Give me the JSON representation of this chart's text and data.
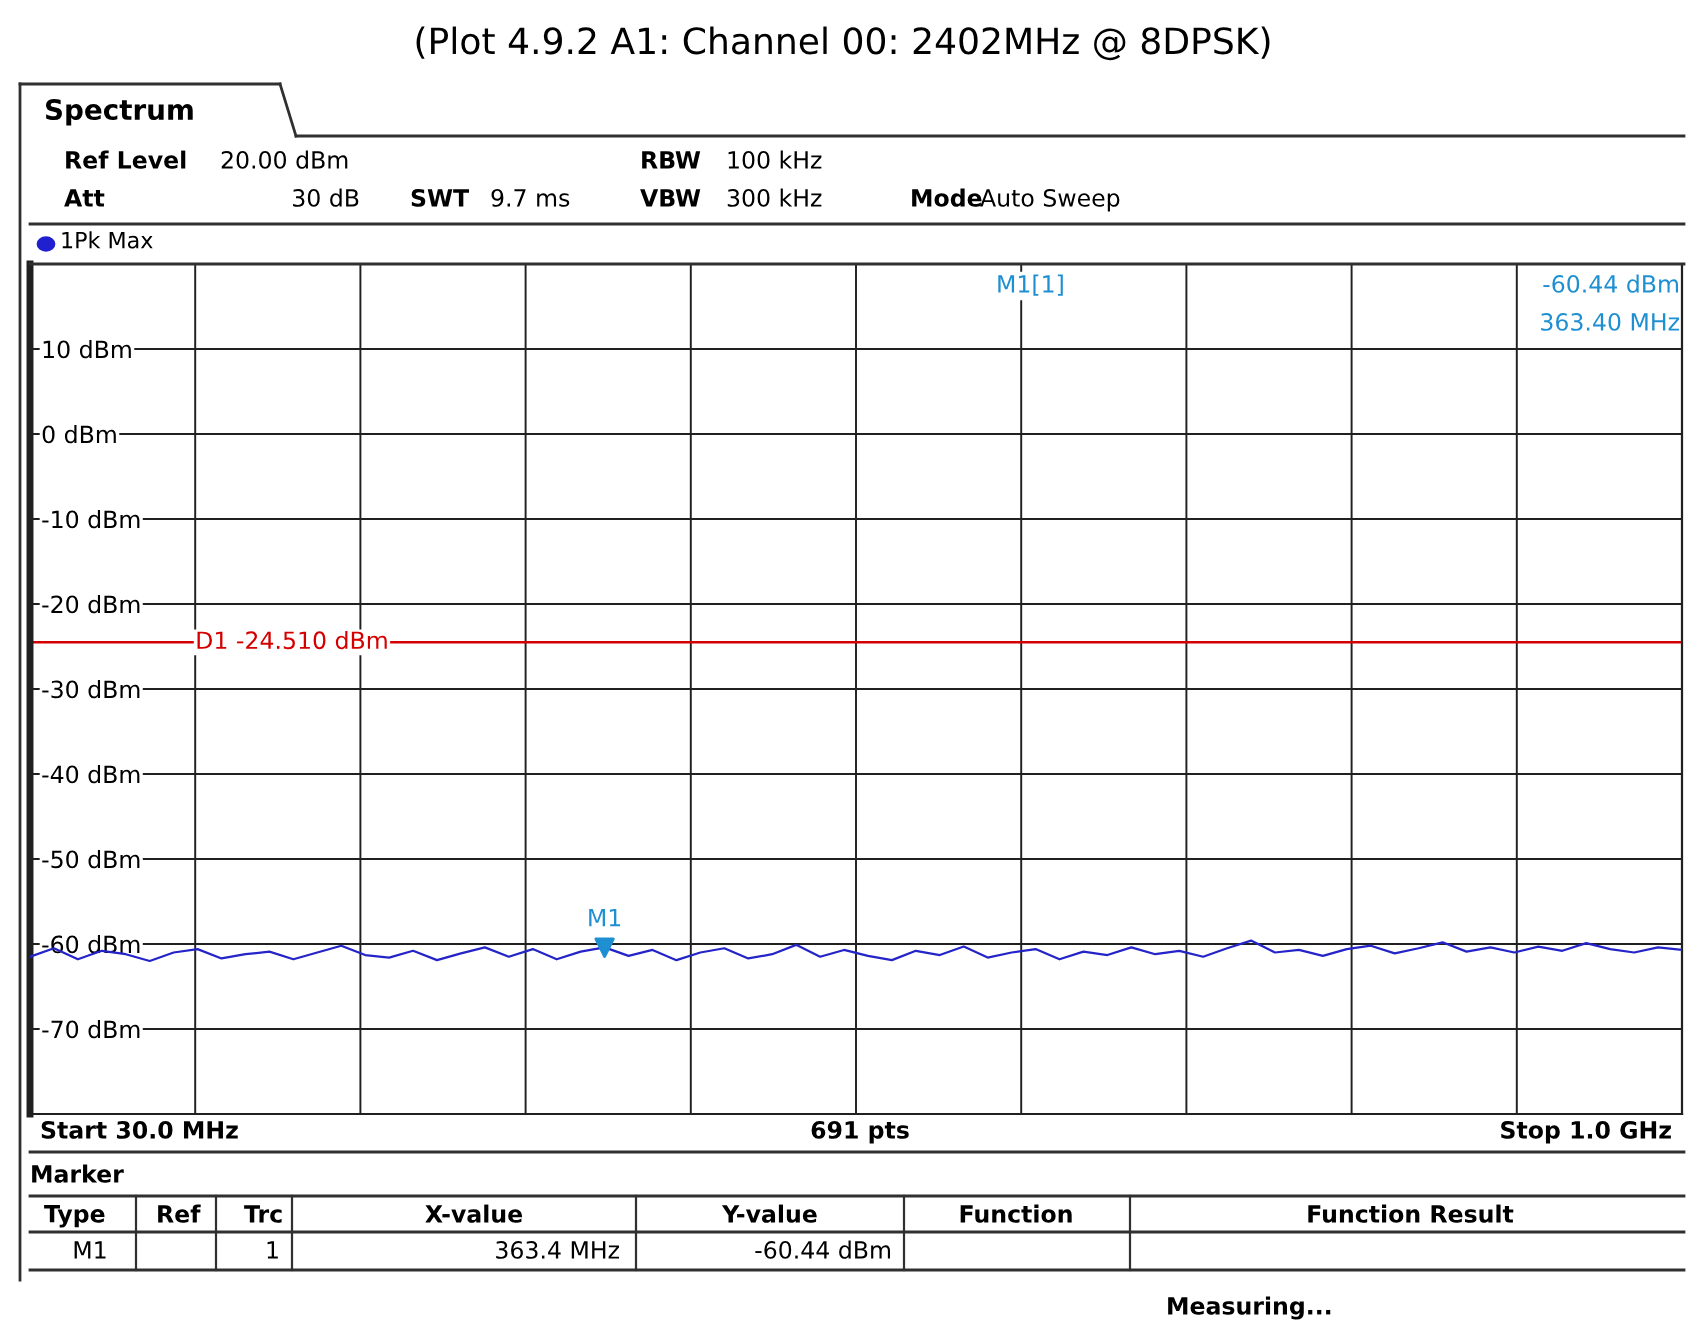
{
  "chart_data": {
    "type": "line",
    "title": "(Plot 4.9.2 A1: Channel 00: 2402MHz @ 8DPSK)",
    "series": [
      {
        "color": "#2424c8",
        "values": [
          -61.5,
          -60.5,
          -61.8,
          -60.8,
          -61.2,
          -62.0,
          -61.0,
          -60.6,
          -61.7,
          -61.2,
          -60.9,
          -61.8,
          -61.0,
          -60.2,
          -61.3,
          -61.6,
          -60.8,
          -61.9,
          -61.1,
          -60.4,
          -61.5,
          -60.6,
          -61.8,
          -60.9,
          -60.4,
          -61.4,
          -60.7,
          -61.9,
          -61.0,
          -60.5,
          -61.7,
          -61.2,
          -60.1,
          -61.5,
          -60.7,
          -61.4,
          -61.9,
          -60.8,
          -61.3,
          -60.3,
          -61.6,
          -61.0,
          -60.6,
          -61.8,
          -60.9,
          -61.3,
          -60.4,
          -61.2,
          -60.8,
          -61.5,
          -60.5,
          -59.6,
          -61.0,
          -60.7,
          -61.4,
          -60.6,
          -60.2,
          -61.1,
          -60.5,
          -59.8,
          -60.9,
          -60.4,
          -61.0,
          -60.3,
          -60.8,
          -59.9,
          -60.6,
          -61.0,
          -60.4,
          -60.7
        ]
      },
      {
        "type": "scatter",
        "color": "#1e8fd0",
        "marker": "triangle",
        "values": [
          null,
          null,
          null,
          null,
          null,
          null,
          null,
          null,
          null,
          null,
          null,
          null,
          null,
          null,
          null,
          null,
          null,
          null,
          null,
          null,
          null,
          null,
          null,
          null,
          -60.44,
          null,
          null,
          null,
          null,
          null,
          null,
          null,
          null,
          null,
          null,
          null,
          null,
          null,
          null,
          null,
          null,
          null,
          null,
          null,
          null,
          null,
          null,
          null,
          null,
          null,
          null,
          null,
          null,
          null,
          null,
          null,
          null,
          null,
          null,
          null,
          null,
          null,
          null,
          null,
          null,
          null,
          null,
          null,
          null,
          null
        ]
      }
    ],
    "categories": [
      null,
      null,
      null,
      null,
      null,
      null,
      null,
      null,
      null,
      null,
      null,
      null,
      null,
      null,
      null,
      null,
      null,
      null,
      null,
      null,
      null,
      null,
      null,
      null,
      null,
      null,
      null,
      null,
      null,
      null,
      null,
      null,
      null,
      null,
      null,
      null,
      null,
      null,
      null,
      null,
      null,
      null,
      null,
      null,
      null,
      null,
      null,
      null,
      null,
      null,
      null,
      null,
      null,
      null,
      null,
      null,
      null,
      null,
      null,
      null,
      null,
      null,
      null,
      null,
      null,
      null,
      null,
      null,
      null,
      null
    ],
    "ylim": [
      -80,
      20
    ],
    "yticks": [
      {
        "value": -70,
        "label": "-70 dBm"
      },
      {
        "value": -60,
        "label": "-60 dBm"
      },
      {
        "value": -50,
        "label": "-50 dBm"
      },
      {
        "value": -40,
        "label": "-40 dBm"
      },
      {
        "value": -30,
        "label": "-30 dBm"
      },
      {
        "value": -20,
        "label": "-20 dBm"
      },
      {
        "value": -10,
        "label": "-10 dBm"
      },
      {
        "value": 0,
        "label": "0 dBm"
      },
      {
        "value": 10,
        "label": "10 dBm"
      }
    ],
    "tick_labels": "y",
    "grid": true,
    "ref_lines": [
      {
        "axis": "y",
        "value": -24.51,
        "label": "D1 -24.510 dBm",
        "color": "#d40000"
      }
    ],
    "annotations": [
      "Spectrum",
      "Ref Level",
      "20.00 dBm",
      "Att",
      "30 dB",
      "SWT",
      "9.7 ms",
      "RBW",
      "100 kHz",
      "VBW",
      "300 kHz",
      "Mode",
      "Auto Sweep",
      "1Pk Max",
      "M1[1]",
      "-60.44 dBm",
      "363.40 MHz",
      "Start 30.0 MHz",
      "691 pts",
      "Stop 1.0 GHz",
      "Marker",
      "Type",
      "Ref",
      "Trc",
      "X-value",
      "Y-value",
      "Function",
      "Function Result",
      "M1",
      "1",
      "363.4 MHz",
      "-60.44 dBm",
      "Measuring...",
      {
        "text": "M1",
        "y": -60.44
      }
    ]
  }
}
